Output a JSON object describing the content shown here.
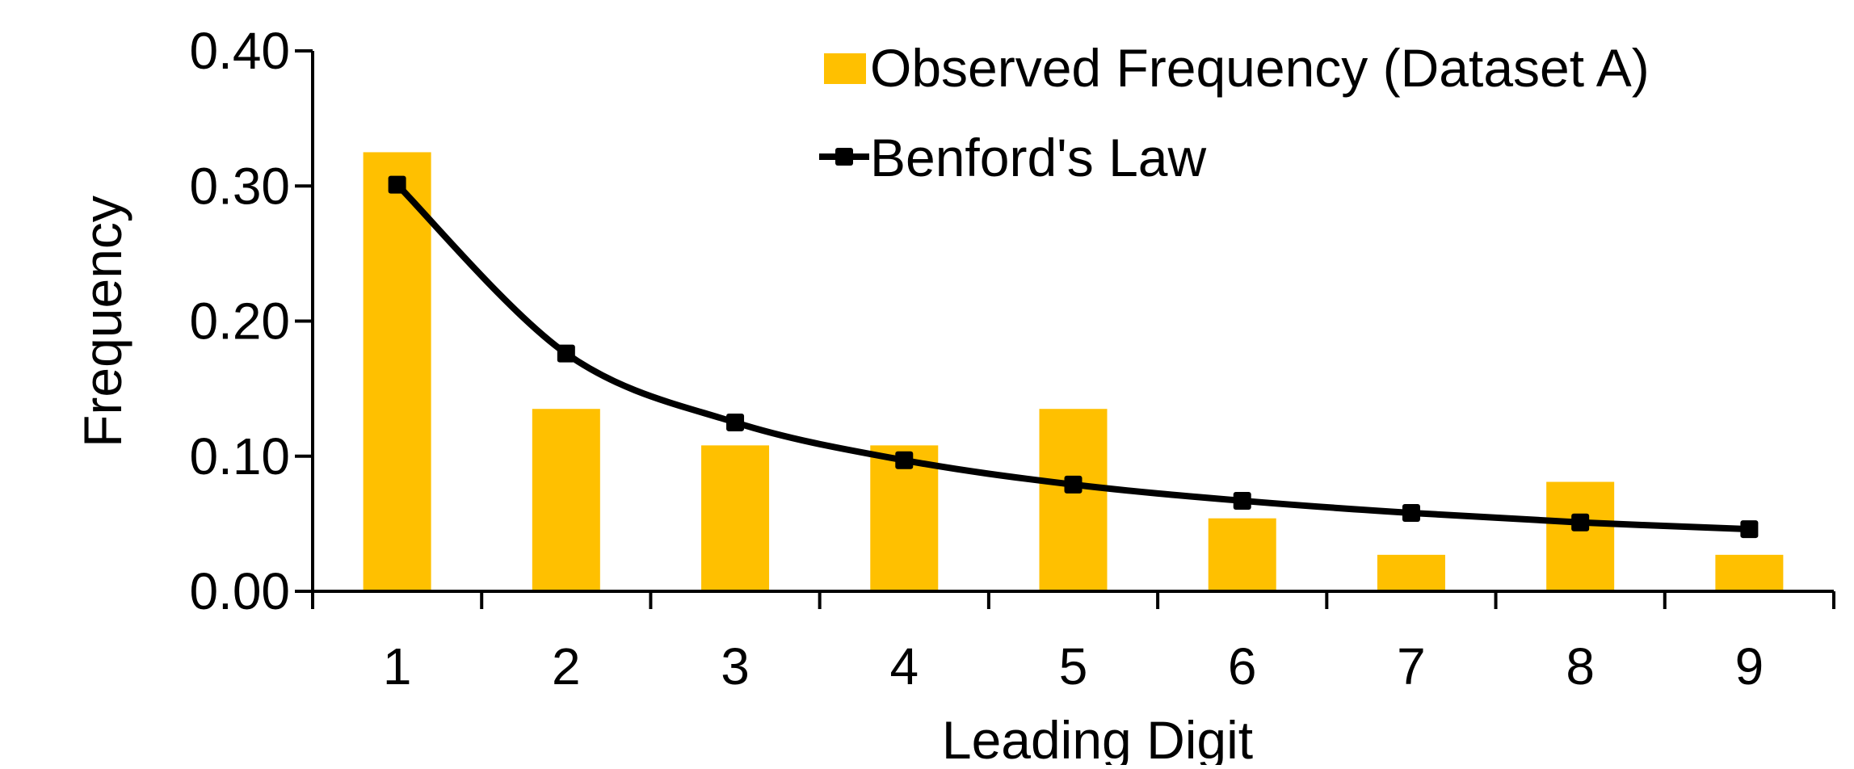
{
  "chart_data": {
    "type": "bar",
    "categories": [
      "1",
      "2",
      "3",
      "4",
      "5",
      "6",
      "7",
      "8",
      "9"
    ],
    "series": [
      {
        "name": "Observed Frequency (Dataset A)",
        "kind": "bar",
        "color": "#FFC000",
        "values": [
          0.325,
          0.135,
          0.108,
          0.108,
          0.135,
          0.054,
          0.027,
          0.081,
          0.027
        ]
      },
      {
        "name": "Benford's Law",
        "kind": "line",
        "color": "#000000",
        "marker": "square",
        "smooth": true,
        "values": [
          0.301,
          0.176,
          0.125,
          0.097,
          0.079,
          0.067,
          0.058,
          0.051,
          0.046
        ]
      }
    ],
    "xlabel": "Leading Digit",
    "ylabel": "Frequency",
    "ylim": [
      0,
      0.4
    ],
    "yticks": [
      "0.00",
      "0.10",
      "0.20",
      "0.30",
      "0.40"
    ],
    "grid": false,
    "legend_position": "top-right"
  }
}
